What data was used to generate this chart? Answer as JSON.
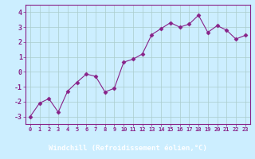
{
  "x": [
    0,
    1,
    2,
    3,
    4,
    5,
    6,
    7,
    8,
    9,
    10,
    11,
    12,
    13,
    14,
    15,
    16,
    17,
    18,
    19,
    20,
    21,
    22,
    23
  ],
  "y": [
    -3.0,
    -2.1,
    -1.8,
    -2.7,
    -1.3,
    -0.7,
    -0.15,
    -0.3,
    -1.35,
    -1.1,
    0.65,
    0.85,
    1.2,
    2.5,
    2.9,
    3.3,
    3.0,
    3.2,
    3.8,
    2.65,
    3.1,
    2.8,
    2.2,
    2.45
  ],
  "line_color": "#882288",
  "marker": "D",
  "marker_size": 2.5,
  "bg_color": "#cceeff",
  "grid_color": "#aacccc",
  "xlabel": "Windchill (Refroidissement éolien,°C)",
  "xlabel_color": "#882288",
  "xlabel_bg": "#9966bb",
  "tick_color": "#882288",
  "ylim": [
    -3.5,
    4.5
  ],
  "xlim": [
    -0.5,
    23.5
  ],
  "yticks": [
    -3,
    -2,
    -1,
    0,
    1,
    2,
    3,
    4
  ],
  "xticks": [
    0,
    1,
    2,
    3,
    4,
    5,
    6,
    7,
    8,
    9,
    10,
    11,
    12,
    13,
    14,
    15,
    16,
    17,
    18,
    19,
    20,
    21,
    22,
    23
  ],
  "border_color": "#882288",
  "spine_color": "#882288"
}
